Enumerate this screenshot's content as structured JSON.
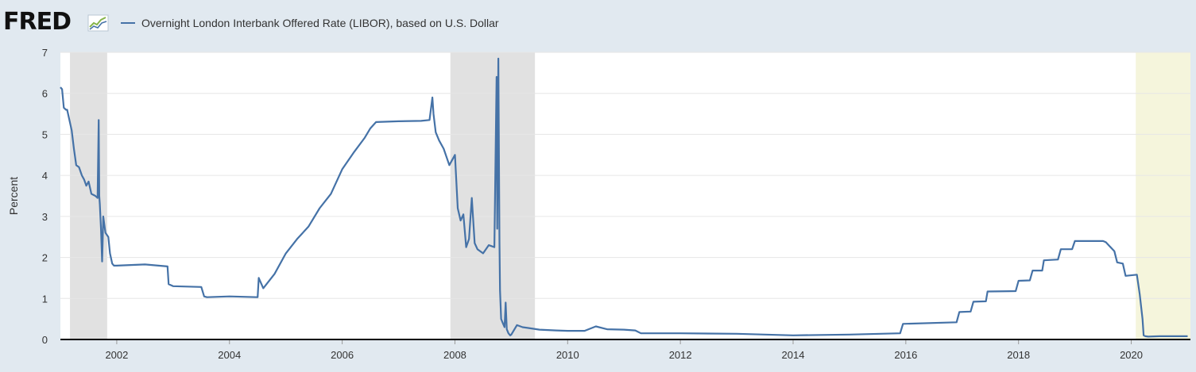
{
  "brand": {
    "logo_text": "FRED",
    "logo_mark": "fred-graph-icon"
  },
  "colors": {
    "series": "#4572a7",
    "plot_background": "#ffffff",
    "page_background": "#e1e9f0",
    "recession_shade": "#e1e1e1",
    "projection_shade": "#f5f5dc",
    "grid": "#e6e6e6",
    "axis": "#000000",
    "text": "#333333"
  },
  "chart_data": {
    "type": "line",
    "title": "",
    "xlabel": "",
    "ylabel": "Percent",
    "xlim": [
      2001.0,
      2021.05
    ],
    "ylim": [
      0,
      7
    ],
    "grid": true,
    "legend_position": "top-left",
    "x_ticks": [
      2002,
      2004,
      2006,
      2008,
      2010,
      2012,
      2014,
      2016,
      2018,
      2020
    ],
    "x_tick_labels": [
      "2002",
      "2004",
      "2006",
      "2008",
      "2010",
      "2012",
      "2014",
      "2016",
      "2018",
      "2020"
    ],
    "y_ticks": [
      0,
      1,
      2,
      3,
      4,
      5,
      6,
      7
    ],
    "y_tick_labels": [
      "0",
      "1",
      "2",
      "3",
      "4",
      "5",
      "6",
      "7"
    ],
    "shaded_periods": [
      {
        "kind": "recession",
        "start": 2001.17,
        "end": 2001.83
      },
      {
        "kind": "recession",
        "start": 2007.92,
        "end": 2009.42
      },
      {
        "kind": "recession",
        "start": 2020.08,
        "end": 2021.05
      }
    ],
    "series": [
      {
        "name": "Overnight London Interbank Offered Rate (LIBOR), based on U.S. Dollar",
        "x": [
          2001.0,
          2001.03,
          2001.06,
          2001.1,
          2001.12,
          2001.2,
          2001.24,
          2001.28,
          2001.33,
          2001.38,
          2001.42,
          2001.46,
          2001.5,
          2001.55,
          2001.62,
          2001.66,
          2001.68,
          2001.69,
          2001.7,
          2001.72,
          2001.74,
          2001.75,
          2001.76,
          2001.8,
          2001.85,
          2001.88,
          2001.92,
          2001.95,
          2002.0,
          2002.5,
          2002.9,
          2002.92,
          2003.0,
          2003.5,
          2003.55,
          2003.6,
          2004.0,
          2004.5,
          2004.52,
          2004.6,
          2004.8,
          2005.0,
          2005.2,
          2005.4,
          2005.6,
          2005.8,
          2006.0,
          2006.2,
          2006.4,
          2006.5,
          2006.6,
          2007.0,
          2007.4,
          2007.55,
          2007.6,
          2007.62,
          2007.66,
          2007.72,
          2007.8,
          2007.9,
          2008.0,
          2008.05,
          2008.1,
          2008.15,
          2008.2,
          2008.25,
          2008.3,
          2008.35,
          2008.4,
          2008.5,
          2008.6,
          2008.7,
          2008.74,
          2008.75,
          2008.77,
          2008.79,
          2008.8,
          2008.82,
          2008.85,
          2008.88,
          2008.9,
          2008.92,
          2008.95,
          2008.98,
          2009.0,
          2009.1,
          2009.2,
          2009.3,
          2009.5,
          2009.8,
          2010.0,
          2010.3,
          2010.5,
          2010.7,
          2011.0,
          2011.2,
          2011.3,
          2012.0,
          2013.0,
          2014.0,
          2015.0,
          2015.9,
          2015.95,
          2016.9,
          2016.95,
          2017.15,
          2017.2,
          2017.42,
          2017.45,
          2017.95,
          2018.0,
          2018.2,
          2018.25,
          2018.42,
          2018.45,
          2018.7,
          2018.75,
          2018.95,
          2019.0,
          2019.5,
          2019.55,
          2019.7,
          2019.75,
          2019.85,
          2019.9,
          2020.1,
          2020.15,
          2020.2,
          2020.22,
          2020.25,
          2020.3,
          2020.5,
          2021.0
        ],
        "values": [
          6.15,
          6.1,
          5.65,
          5.6,
          5.6,
          5.1,
          4.65,
          4.25,
          4.2,
          4.0,
          3.9,
          3.75,
          3.85,
          3.55,
          3.5,
          3.45,
          5.35,
          3.5,
          3.3,
          2.7,
          1.9,
          2.4,
          3.0,
          2.6,
          2.5,
          2.1,
          1.85,
          1.8,
          1.8,
          1.83,
          1.78,
          1.35,
          1.3,
          1.28,
          1.05,
          1.03,
          1.05,
          1.03,
          1.5,
          1.25,
          1.6,
          2.1,
          2.45,
          2.75,
          3.2,
          3.55,
          4.15,
          4.55,
          4.92,
          5.15,
          5.3,
          5.32,
          5.33,
          5.35,
          5.9,
          5.5,
          5.05,
          4.85,
          4.65,
          4.25,
          4.5,
          3.2,
          2.9,
          3.05,
          2.25,
          2.45,
          3.45,
          2.35,
          2.2,
          2.1,
          2.3,
          2.25,
          6.4,
          2.7,
          6.85,
          2.4,
          1.2,
          0.5,
          0.4,
          0.3,
          0.9,
          0.25,
          0.15,
          0.1,
          0.12,
          0.35,
          0.3,
          0.28,
          0.24,
          0.22,
          0.21,
          0.21,
          0.32,
          0.25,
          0.24,
          0.22,
          0.15,
          0.15,
          0.14,
          0.1,
          0.12,
          0.15,
          0.38,
          0.42,
          0.67,
          0.68,
          0.92,
          0.93,
          1.17,
          1.18,
          1.43,
          1.44,
          1.68,
          1.68,
          1.93,
          1.95,
          2.2,
          2.2,
          2.4,
          2.4,
          2.37,
          2.15,
          1.88,
          1.85,
          1.55,
          1.58,
          1.1,
          0.5,
          0.1,
          0.08,
          0.07,
          0.08,
          0.08
        ]
      }
    ]
  }
}
